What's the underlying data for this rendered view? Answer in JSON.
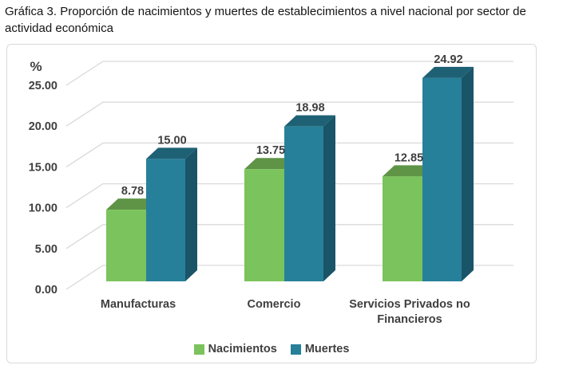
{
  "title": "Gráfica 3. Proporción de nacimientos y muertes de establecimientos a nivel nacional por sector de actividad económica",
  "chart_data": {
    "type": "bar",
    "style": "3d-clustered-column",
    "unit_label": "%",
    "categories": [
      "Manufacturas",
      "Comercio",
      "Servicios Privados no Financieros"
    ],
    "series": [
      {
        "name": "Nacimientos",
        "values": [
          8.78,
          13.75,
          12.85
        ],
        "color": "#7BC35C",
        "color_top": "#5F9447",
        "color_side": "#4C7A38"
      },
      {
        "name": "Muertes",
        "values": [
          15.0,
          18.98,
          24.92
        ],
        "color": "#27809A",
        "color_top": "#1E6175",
        "color_side": "#1A5468"
      }
    ],
    "value_labels": [
      [
        "8.78",
        "13.75",
        "12.85"
      ],
      [
        "15.00",
        "18.98",
        "24.92"
      ]
    ],
    "y_ticks": [
      "25.00",
      "20.00",
      "15.00",
      "10.00",
      "5.00",
      "0.00"
    ],
    "ylim": [
      0,
      25
    ],
    "grid": true,
    "legend_position": "bottom"
  },
  "ui": {
    "colors": {
      "gridline": "#D9D9D9",
      "chart_border": "#D9D9D9",
      "label_text": "#3F3F3F",
      "title_text": "#141414"
    }
  }
}
